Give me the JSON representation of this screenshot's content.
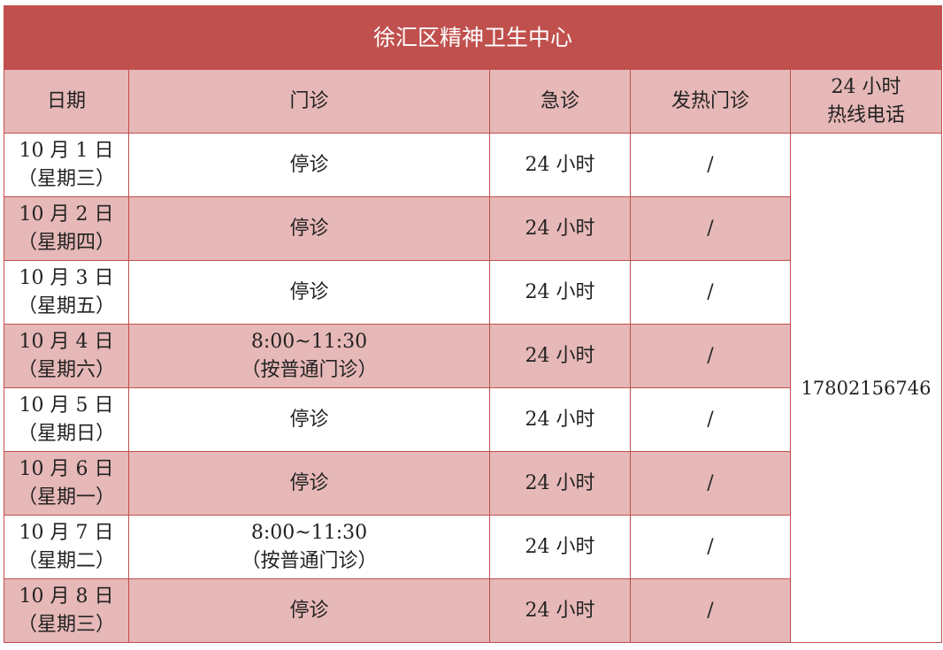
{
  "title": "徐汇区精神卫生中心",
  "headers": [
    "日期",
    "门诊",
    "急诊",
    "发热门诊",
    "24 小时",
    "热线电话"
  ],
  "hotline": "17802156746",
  "rows": [
    {
      "date": "10 月 1 日",
      "weekday": "（星期三）",
      "clinic": "停诊",
      "clinic_note": "",
      "emergency": "24 小时",
      "fever": "/"
    },
    {
      "date": "10 月 2 日",
      "weekday": "（星期四）",
      "clinic": "停诊",
      "clinic_note": "",
      "emergency": "24 小时",
      "fever": "/"
    },
    {
      "date": "10 月 3 日",
      "weekday": "（星期五）",
      "clinic": "停诊",
      "clinic_note": "",
      "emergency": "24 小时",
      "fever": "/"
    },
    {
      "date": "10 月 4 日",
      "weekday": "（星期六）",
      "clinic": "8:00~11:30",
      "clinic_note": "（按普通门诊）",
      "emergency": "24 小时",
      "fever": "/"
    },
    {
      "date": "10 月 5 日",
      "weekday": "（星期日）",
      "clinic": "停诊",
      "clinic_note": "",
      "emergency": "24 小时",
      "fever": "/"
    },
    {
      "date": "10 月 6 日",
      "weekday": "（星期一）",
      "clinic": "停诊",
      "clinic_note": "",
      "emergency": "24 小时",
      "fever": "/"
    },
    {
      "date": "10 月 7 日",
      "weekday": "（星期二）",
      "clinic": "8:00~11:30",
      "clinic_note": "（按普通门诊）",
      "emergency": "24 小时",
      "fever": "/"
    },
    {
      "date": "10 月 8 日",
      "weekday": "（星期三）",
      "clinic": "停诊",
      "clinic_note": "",
      "emergency": "24 小时",
      "fever": "/"
    }
  ],
  "colors": {
    "title_bg": "#c0504d",
    "header_bg": "#e6b8b7",
    "border": "#c0504d"
  }
}
